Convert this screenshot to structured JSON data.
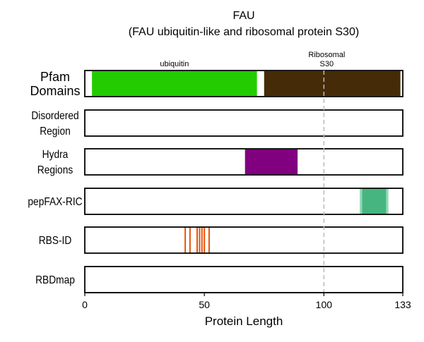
{
  "chart_data": {
    "type": "track",
    "title": "FAU",
    "subtitle": "(FAU ubiquitin-like and ribosomal protein S30)",
    "xlabel": "Protein Length",
    "xlim": [
      0,
      133
    ],
    "xticks": [
      0,
      50,
      100,
      133
    ],
    "reference_line_x": 100,
    "tracks": [
      {
        "label": [
          "Pfam",
          "Domains"
        ],
        "features": [
          {
            "name": "ubiquitin",
            "start": 3,
            "end": 72,
            "color": "#22cc00"
          },
          {
            "name": "Ribosomal S30",
            "start": 75,
            "end": 132,
            "color": "#452b08"
          }
        ],
        "feature_labels": [
          [
            "ubiquitin"
          ],
          [
            "Ribosomal",
            "S30"
          ]
        ]
      },
      {
        "label": [
          "Disordered",
          "Region"
        ],
        "features": []
      },
      {
        "label": [
          "Hydra",
          "Regions"
        ],
        "features": [
          {
            "start": 67,
            "end": 89,
            "color": "#800080"
          }
        ]
      },
      {
        "label": [
          "pepFAX-RIC"
        ],
        "features": [
          {
            "start": 115,
            "end": 127,
            "color": "#93d9b7"
          },
          {
            "start": 116,
            "end": 126,
            "color": "#46b57f"
          }
        ]
      },
      {
        "label": [
          "RBS-ID"
        ],
        "features": [
          {
            "position": 42,
            "color": "#e6550d"
          },
          {
            "position": 44,
            "color": "#e6550d"
          },
          {
            "position": 47,
            "color": "#e6550d"
          },
          {
            "position": 48,
            "color": "#e6550d"
          },
          {
            "position": 49,
            "color": "#e6550d"
          },
          {
            "position": 50,
            "color": "#e6550d"
          },
          {
            "position": 52,
            "color": "#e6550d"
          }
        ]
      },
      {
        "label": [
          "RBDmap"
        ],
        "features": []
      }
    ]
  }
}
